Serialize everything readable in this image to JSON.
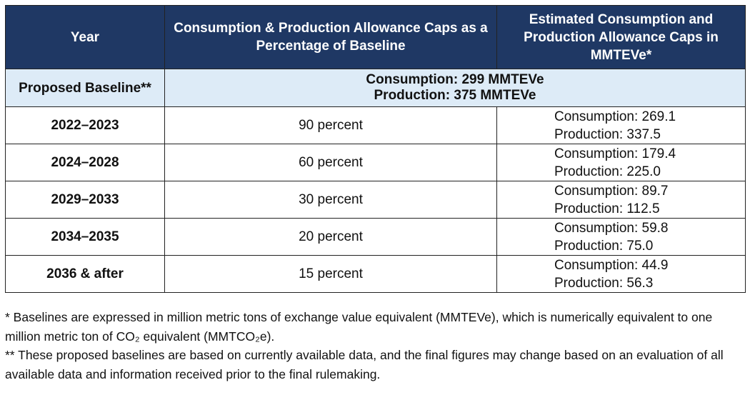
{
  "table": {
    "header": [
      "Year",
      "Consumption & Production Allowance Caps as a Percentage of Baseline",
      "Estimated Consumption and Production Allowance Caps in MMTEVe*"
    ],
    "baseline": {
      "label": "Proposed Baseline**",
      "lines": [
        "Consumption: 299 MMTEVe",
        "Production: 375 MMTEVe"
      ]
    },
    "rows": [
      [
        "2022–2023",
        "90 percent",
        "Consumption: 269.1",
        "Production: 337.5"
      ],
      [
        "2024–2028",
        "60 percent",
        "Consumption: 179.4",
        "Production: 225.0"
      ],
      [
        "2029–2033",
        "30 percent",
        "Consumption: 89.7",
        "Production: 112.5"
      ],
      [
        "2034–2035",
        "20 percent",
        "Consumption: 59.8",
        "Production: 75.0"
      ],
      [
        "2036 & after",
        "15 percent",
        "Consumption: 44.9",
        "Production: 56.3"
      ]
    ]
  },
  "footnotes": [
    "* Baselines are expressed in million metric tons of exchange value equivalent (MMTEVe), which is numerically equivalent to one million metric ton of CO₂ equivalent (MMTCO₂e).",
    "** These proposed baselines are based on currently available data, and the final figures may change based on an evaluation of all available data and information received prior to the final rulemaking."
  ]
}
